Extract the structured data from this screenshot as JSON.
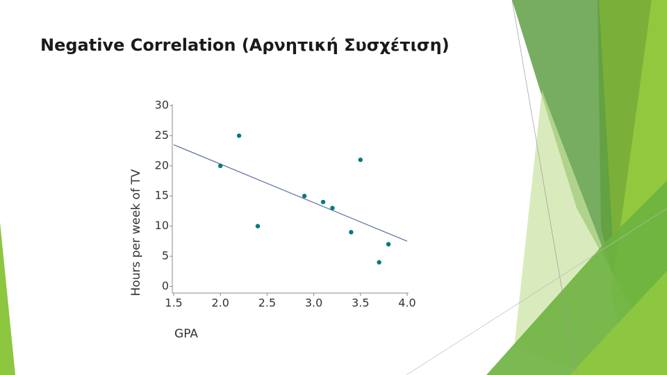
{
  "chart_data": {
    "type": "scatter",
    "title": "Negative Correlation (Αρνητική Συσχέτιση)",
    "x_label": "GPA",
    "y_label": "Hours per week of TV",
    "color": "#007a7a",
    "x": [
      2.0,
      2.2,
      2.4,
      2.9,
      3.1,
      3.2,
      3.4,
      3.5,
      3.7,
      3.8
    ],
    "values": [
      20,
      25,
      10,
      15,
      14,
      13,
      9,
      21,
      4,
      7
    ],
    "trendline": {
      "x": [
        1.5,
        4.0
      ],
      "values": [
        23.5,
        7.5
      ],
      "color": "#5a6aa0"
    },
    "xlim": [
      1.5,
      4.0
    ],
    "xticks": [
      1.5,
      {
        "value": 2,
        "label": "2.0"
      },
      2.5,
      {
        "value": 3,
        "label": "3.0"
      },
      3.5,
      {
        "value": 4,
        "label": "4.0"
      }
    ],
    "ylim": [
      -1.1,
      30
    ],
    "yticks": [
      0,
      5,
      10,
      15,
      20,
      25,
      30
    ],
    "grid": false
  }
}
